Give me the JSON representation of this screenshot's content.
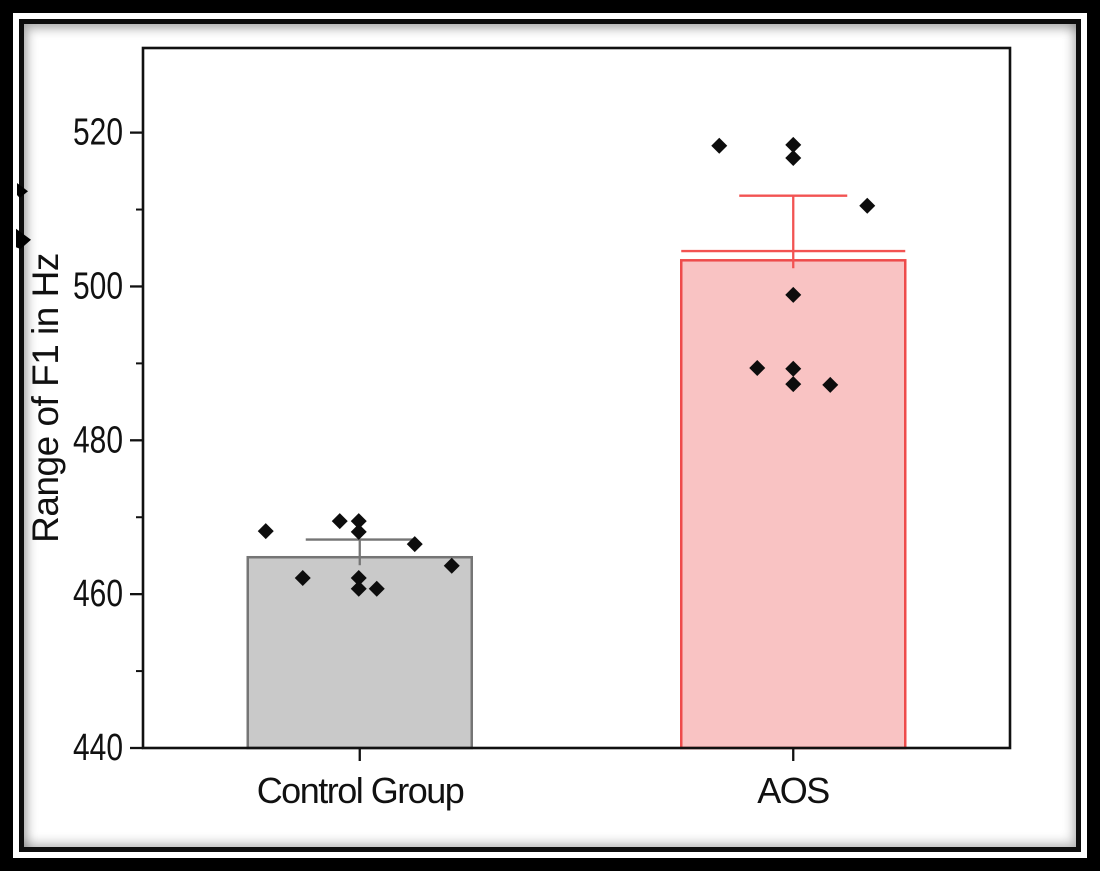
{
  "frame": {
    "outer_color": "#000000",
    "mat_color": "#ffffff",
    "inner_border_color": "#0d0d0d",
    "plot_background": "#ffffff"
  },
  "axis": {
    "line_color": "#111111",
    "tick_label_color": "#111111"
  },
  "chart_data": {
    "type": "bar",
    "title": "",
    "ylabel": "Range of F1 in Hz",
    "xlabel": "",
    "categories": [
      "Control Group",
      "AOS"
    ],
    "ylim": [
      440,
      531
    ],
    "yticks": [
      440,
      460,
      480,
      500,
      520
    ],
    "yticks_minor": [
      450,
      470,
      490,
      510
    ],
    "grid": false,
    "legend": "none",
    "point_color": "#0d0d0d",
    "point_shape": "diamond",
    "series": [
      {
        "name": "Control Group",
        "mean": 464.8,
        "error_upper": 467.1,
        "fill_color": "#c9c9c9",
        "edge_color": "#757575",
        "error_color": "#757575",
        "points": [
          {
            "dx": -94,
            "value": 468.2
          },
          {
            "dx": -57,
            "value": 462.1
          },
          {
            "dx": -20,
            "value": 469.5
          },
          {
            "dx": -1,
            "value": 469.5
          },
          {
            "dx": -1,
            "value": 468.1
          },
          {
            "dx": -1,
            "value": 462.1
          },
          {
            "dx": -1,
            "value": 460.7
          },
          {
            "dx": 17,
            "value": 460.7
          },
          {
            "dx": 55,
            "value": 466.5
          },
          {
            "dx": 92,
            "value": 463.7
          }
        ]
      },
      {
        "name": "AOS",
        "mean": 503.4,
        "error_upper": 511.8,
        "mean_line": 504.6,
        "fill_color": "#f9c3c3",
        "edge_color": "#ee4b4b",
        "error_color": "#f25352",
        "points": [
          {
            "dx": -74,
            "value": 518.3
          },
          {
            "dx": 0,
            "value": 518.4
          },
          {
            "dx": 0,
            "value": 516.7
          },
          {
            "dx": 74,
            "value": 510.5
          },
          {
            "dx": 0,
            "value": 498.9
          },
          {
            "dx": -36,
            "value": 489.4
          },
          {
            "dx": 0,
            "value": 489.3
          },
          {
            "dx": 0,
            "value": 487.3
          },
          {
            "dx": 37,
            "value": 487.2
          }
        ]
      }
    ]
  }
}
